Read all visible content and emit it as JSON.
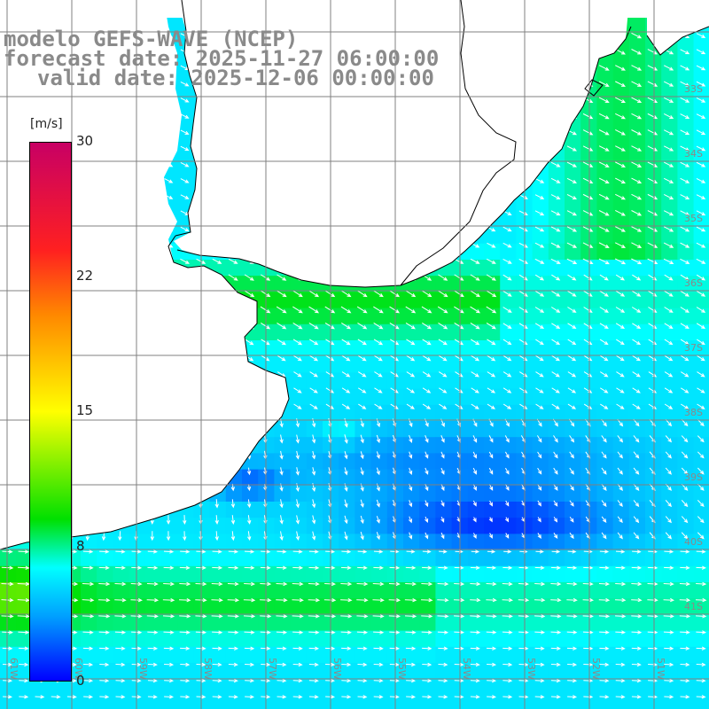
{
  "title": {
    "model": "modelo GEFS-WAVE (NCEP)",
    "forecast": "forecast date: 2025-11-27 06:00:00",
    "valid": "valid date: 2025-12-06 00:00:00"
  },
  "colorbar": {
    "units": "[m/s]",
    "ticks": [
      "30",
      "22",
      "15",
      "8",
      "0"
    ],
    "stops": [
      {
        "value": 30,
        "color": "#c80064"
      },
      {
        "value": 22,
        "color": "#ff2020"
      },
      {
        "value": 15,
        "color": "#ffff00"
      },
      {
        "value": 11,
        "color": "#00e000"
      },
      {
        "value": 8,
        "color": "#00ffff"
      },
      {
        "value": 0,
        "color": "#0000ff"
      }
    ]
  },
  "map": {
    "lat_labels": [
      "33S",
      "34S",
      "35S",
      "36S",
      "37S",
      "38S",
      "39S",
      "40S",
      "41S"
    ],
    "lon_labels": [
      "61W",
      "60W",
      "59W",
      "58W",
      "57W",
      "56W",
      "55W",
      "54W",
      "53W",
      "52W",
      "51W"
    ],
    "land_color": "#ffffff",
    "coast_color": "#000000",
    "grid_color": "#808080"
  }
}
